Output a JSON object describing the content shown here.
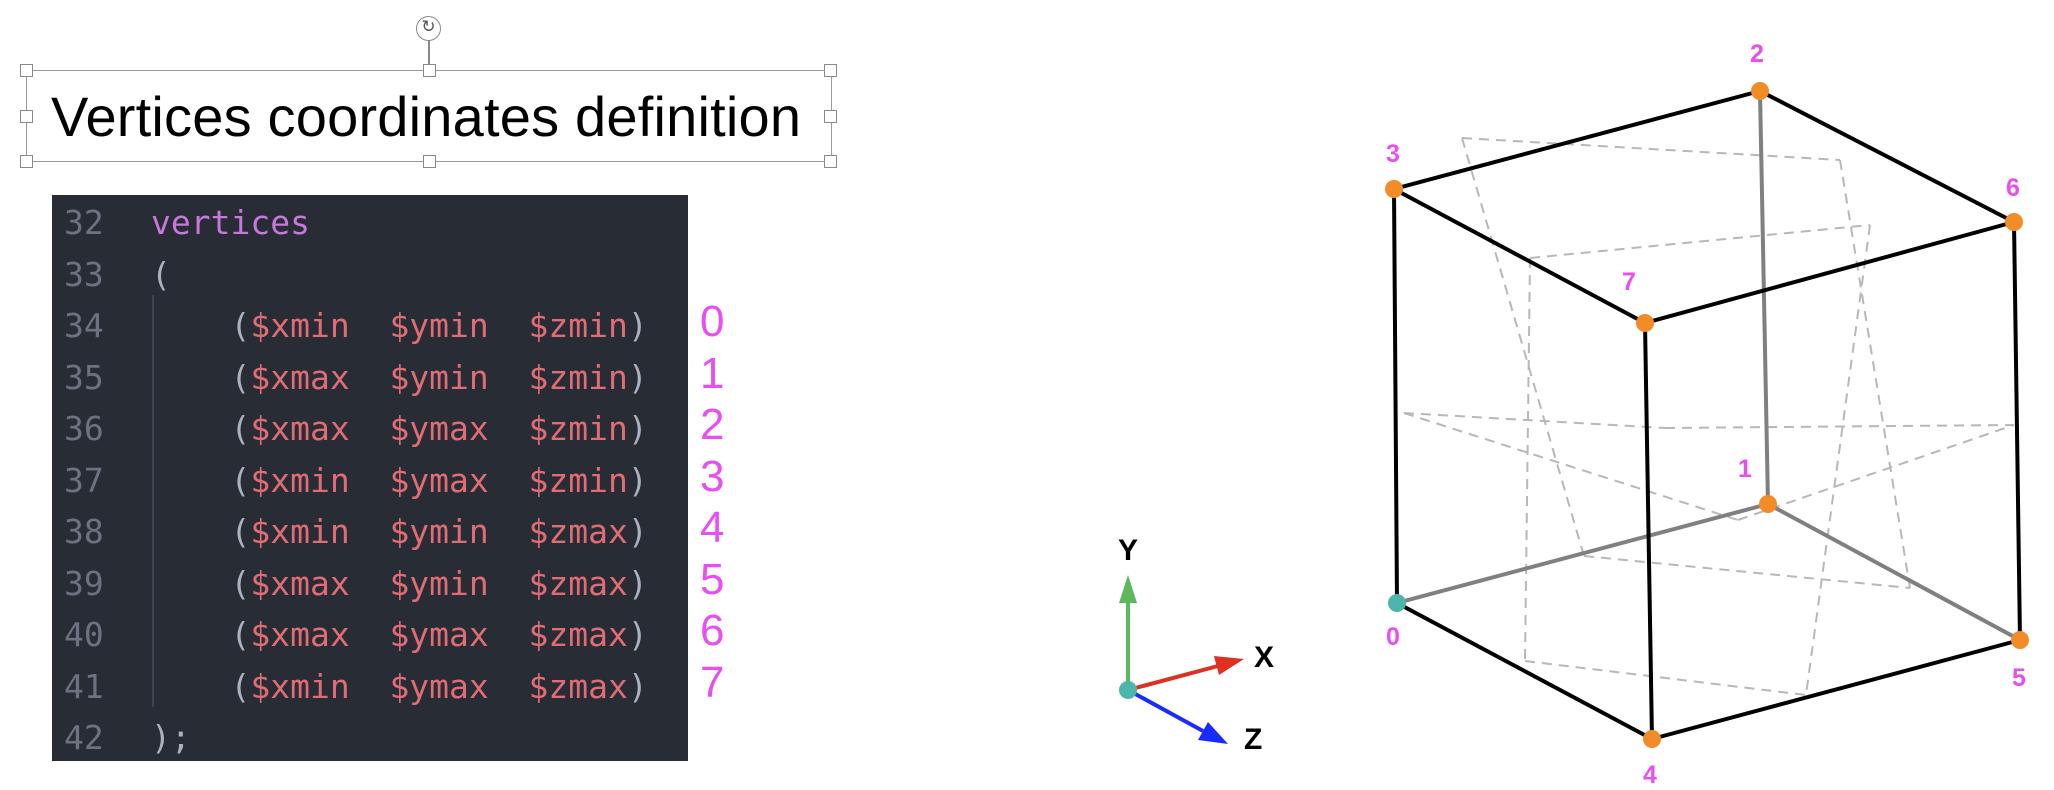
{
  "slide": {
    "title": "Vertices coordinates definition",
    "rotate_icon": "rotate-icon"
  },
  "code": {
    "lines": [
      {
        "num": "32",
        "parts": [
          {
            "t": "vertices",
            "c": "kw"
          }
        ]
      },
      {
        "num": "33",
        "parts": [
          {
            "t": "(",
            "c": "punc"
          }
        ]
      },
      {
        "num": "34",
        "parts": [
          {
            "t": "    (",
            "c": "punc"
          },
          {
            "t": "$xmin",
            "c": "var"
          },
          {
            "t": "  ",
            "c": "punc"
          },
          {
            "t": "$ymin",
            "c": "var"
          },
          {
            "t": "  ",
            "c": "punc"
          },
          {
            "t": "$zmin",
            "c": "var"
          },
          {
            "t": ")",
            "c": "punc"
          }
        ]
      },
      {
        "num": "35",
        "parts": [
          {
            "t": "    (",
            "c": "punc"
          },
          {
            "t": "$xmax",
            "c": "var"
          },
          {
            "t": "  ",
            "c": "punc"
          },
          {
            "t": "$ymin",
            "c": "var"
          },
          {
            "t": "  ",
            "c": "punc"
          },
          {
            "t": "$zmin",
            "c": "var"
          },
          {
            "t": ")",
            "c": "punc"
          }
        ]
      },
      {
        "num": "36",
        "parts": [
          {
            "t": "    (",
            "c": "punc"
          },
          {
            "t": "$xmax",
            "c": "var"
          },
          {
            "t": "  ",
            "c": "punc"
          },
          {
            "t": "$ymax",
            "c": "var"
          },
          {
            "t": "  ",
            "c": "punc"
          },
          {
            "t": "$zmin",
            "c": "var"
          },
          {
            "t": ")",
            "c": "punc"
          }
        ]
      },
      {
        "num": "37",
        "parts": [
          {
            "t": "    (",
            "c": "punc"
          },
          {
            "t": "$xmin",
            "c": "var"
          },
          {
            "t": "  ",
            "c": "punc"
          },
          {
            "t": "$ymax",
            "c": "var"
          },
          {
            "t": "  ",
            "c": "punc"
          },
          {
            "t": "$zmin",
            "c": "var"
          },
          {
            "t": ")",
            "c": "punc"
          }
        ]
      },
      {
        "num": "38",
        "parts": [
          {
            "t": "    (",
            "c": "punc"
          },
          {
            "t": "$xmin",
            "c": "var"
          },
          {
            "t": "  ",
            "c": "punc"
          },
          {
            "t": "$ymin",
            "c": "var"
          },
          {
            "t": "  ",
            "c": "punc"
          },
          {
            "t": "$zmax",
            "c": "var"
          },
          {
            "t": ")",
            "c": "punc"
          }
        ]
      },
      {
        "num": "39",
        "parts": [
          {
            "t": "    (",
            "c": "punc"
          },
          {
            "t": "$xmax",
            "c": "var"
          },
          {
            "t": "  ",
            "c": "punc"
          },
          {
            "t": "$ymin",
            "c": "var"
          },
          {
            "t": "  ",
            "c": "punc"
          },
          {
            "t": "$zmax",
            "c": "var"
          },
          {
            "t": ")",
            "c": "punc"
          }
        ]
      },
      {
        "num": "40",
        "parts": [
          {
            "t": "    (",
            "c": "punc"
          },
          {
            "t": "$xmax",
            "c": "var"
          },
          {
            "t": "  ",
            "c": "punc"
          },
          {
            "t": "$ymax",
            "c": "var"
          },
          {
            "t": "  ",
            "c": "punc"
          },
          {
            "t": "$zmax",
            "c": "var"
          },
          {
            "t": ")",
            "c": "punc"
          }
        ]
      },
      {
        "num": "41",
        "parts": [
          {
            "t": "    (",
            "c": "punc"
          },
          {
            "t": "$xmin",
            "c": "var"
          },
          {
            "t": "  ",
            "c": "punc"
          },
          {
            "t": "$ymax",
            "c": "var"
          },
          {
            "t": "  ",
            "c": "punc"
          },
          {
            "t": "$zmax",
            "c": "var"
          },
          {
            "t": ")",
            "c": "punc"
          }
        ]
      },
      {
        "num": "42",
        "parts": [
          {
            "t": ");",
            "c": "punc"
          }
        ]
      }
    ],
    "vertex_indices": [
      "0",
      "1",
      "2",
      "3",
      "4",
      "5",
      "6",
      "7"
    ]
  },
  "axes": {
    "y_label": "Y",
    "x_label": "X",
    "z_label": "Z"
  },
  "cube": {
    "vertex_labels": [
      "0",
      "1",
      "2",
      "3",
      "4",
      "5",
      "6",
      "7"
    ]
  },
  "colors": {
    "editor_bg": "#282c34",
    "keyword": "#c678dd",
    "variable": "#e06c75",
    "punctuation": "#abb2bf",
    "line_number": "#6b7280",
    "index_label": "#e94ff0",
    "vertex_dot": "#f28c28",
    "origin_dot": "#4db6ac",
    "axis_x": "#e03020",
    "axis_y": "#5cb85c",
    "axis_z": "#1a2bff"
  }
}
